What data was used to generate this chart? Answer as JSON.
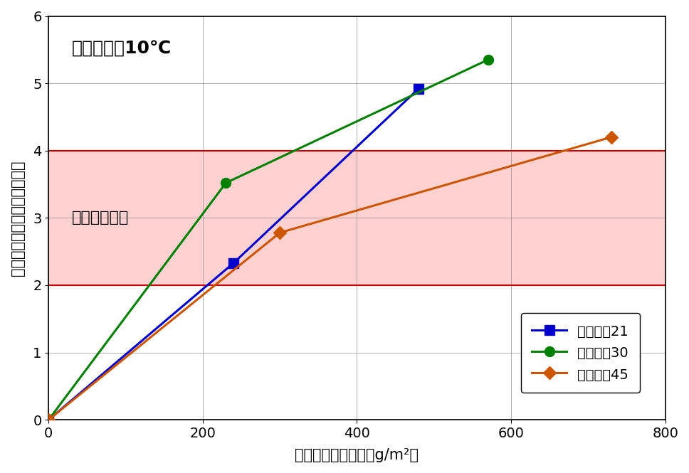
{
  "series": [
    {
      "label": "呼び強度21",
      "x": [
        0,
        240,
        480
      ],
      "y": [
        0,
        2.33,
        4.92
      ],
      "color": "#0000CD",
      "marker": "s",
      "markersize": 10,
      "linewidth": 2.2
    },
    {
      "label": "呼び強度30",
      "x": [
        0,
        230,
        570
      ],
      "y": [
        0,
        3.52,
        5.35
      ],
      "color": "#008000",
      "marker": "o",
      "markersize": 10,
      "linewidth": 2.2
    },
    {
      "label": "呼び強度45",
      "x": [
        0,
        300,
        730
      ],
      "y": [
        0,
        2.78,
        4.2
      ],
      "color": "#CC5500",
      "marker": "D",
      "markersize": 9,
      "linewidth": 2.2
    }
  ],
  "target_zone": {
    "y_min": 2.0,
    "y_max": 4.0,
    "color": "#FF9999",
    "alpha": 0.45,
    "label": "目標短縮時間"
  },
  "target_lines": {
    "y_min": 2.0,
    "y_max": 4.0,
    "color": "#CC0000",
    "linewidth": 1.5
  },
  "annotation": "環境温度：10℃",
  "xlabel": "凝結促進剤散布量（g/m²）",
  "ylabel": "待機時間の短縮効果（時間）",
  "xlim": [
    0,
    800
  ],
  "ylim": [
    0,
    6
  ],
  "xticks": [
    0,
    200,
    400,
    600,
    800
  ],
  "yticks": [
    0,
    1,
    2,
    3,
    4,
    5,
    6
  ],
  "grid": true,
  "background_color": "#ffffff",
  "figsize": [
    9.68,
    6.65
  ],
  "dpi": 100
}
